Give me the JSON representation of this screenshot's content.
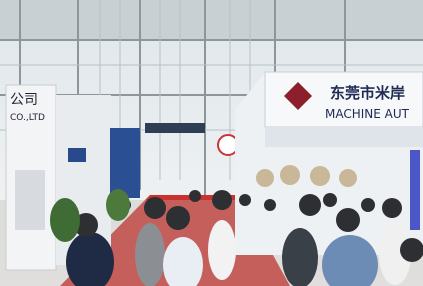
{
  "left_sign": {
    "title": "公司",
    "subtitle": "CO.,LTD"
  },
  "right_sign": {
    "title": "东莞市米岸",
    "subtitle": "MACHINE AUT"
  }
}
